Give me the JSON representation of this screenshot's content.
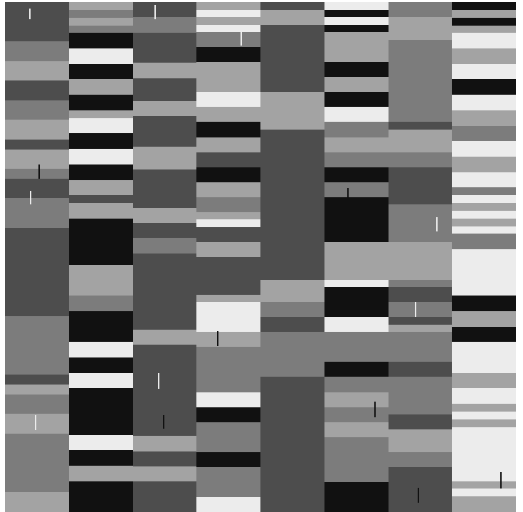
{
  "palette": {
    "k": "#111111",
    "d": "#4d4d4d",
    "m": "#7c7c7c",
    "l": "#a3a3a3",
    "w": "#ececec"
  },
  "columns": [
    {
      "rows": "ddddmmllddmmlldllmddmmmdddddddddmmmmmmdlmmllmmmmmmll"
    },
    {
      "rows": "lmlmkkwwkkllkklwwkkwwkklldllkkkkkkllllmmkkkkwwkkwwkkkkkkwwkkllkkkk"
    },
    {
      "rows": "ddmmddddlldddllddddllldddddllddmmddddddddddllddddddddddddllddlldddd"
    },
    {
      "rows": "lwlwmmkkllllwwllkkllddkkllmmlwddlldddddlwwwwllmmmmmmwwkkmmmmkkmmmmww"
    },
    {
      "rows": "dlldddddddddlllllddddddddddddddddddddlllmmddmmmmmmdddddddddddddddddd"
    },
    {
      "rows": "wkwkllllkkllkkwwmmllmmkkmmkkkkkklllllwkkkkwwmmmmkkmmllmmllmmmmmmkkkk"
    },
    {
      "rows": "mmlllmmmmmmmmmmmdlllmmdddddmmmmmlllllmddmmdlmmmmddmmmmmddlllmmdddddd"
    },
    {
      "rows": "klklwwllwwkkwwllmmwwllwwmwlwlwmmwwwwwwkkllkkwwwwllwwlwlwwwwwwwlwll"
    }
  ],
  "ticks": [
    {
      "col": 0,
      "row_frac": 0.012,
      "len": 0.022,
      "shade": "w"
    },
    {
      "col": 0,
      "row_frac": 0.318,
      "len": 0.028,
      "shade": "k"
    },
    {
      "col": 0,
      "row_frac": 0.37,
      "len": 0.026,
      "shade": "w"
    },
    {
      "col": 0,
      "row_frac": 0.81,
      "len": 0.03,
      "shade": "w"
    },
    {
      "col": 2,
      "row_frac": 0.006,
      "len": 0.028,
      "shade": "w"
    },
    {
      "col": 2,
      "row_frac": 0.728,
      "len": 0.03,
      "shade": "w"
    },
    {
      "col": 2,
      "row_frac": 0.81,
      "len": 0.026,
      "shade": "k"
    },
    {
      "col": 3,
      "row_frac": 0.055,
      "len": 0.03,
      "shade": "w"
    },
    {
      "col": 3,
      "row_frac": 0.645,
      "len": 0.03,
      "shade": "k"
    },
    {
      "col": 5,
      "row_frac": 0.365,
      "len": 0.03,
      "shade": "k"
    },
    {
      "col": 5,
      "row_frac": 0.784,
      "len": 0.03,
      "shade": "k"
    },
    {
      "col": 6,
      "row_frac": 0.422,
      "len": 0.028,
      "shade": "w"
    },
    {
      "col": 6,
      "row_frac": 0.588,
      "len": 0.03,
      "shade": "w"
    },
    {
      "col": 6,
      "row_frac": 0.952,
      "len": 0.03,
      "shade": "k"
    },
    {
      "col": 7,
      "row_frac": 0.922,
      "len": 0.032,
      "shade": "k"
    }
  ]
}
